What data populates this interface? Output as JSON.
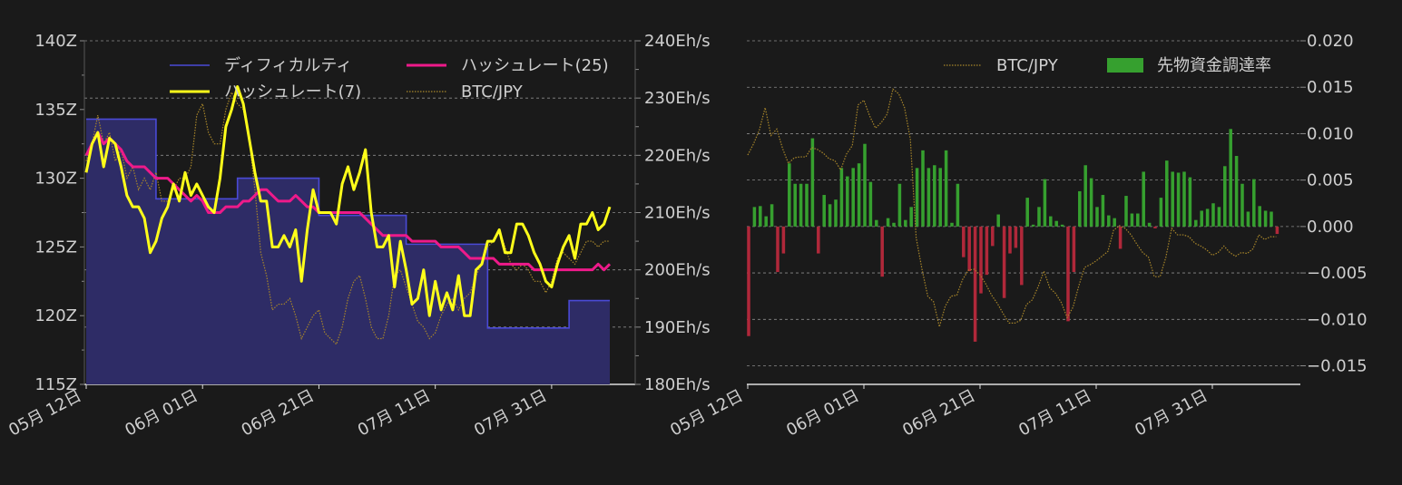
{
  "colors": {
    "background": "#1a1a1a",
    "grid": "#8a8a8a",
    "axis_text": "#cfcfcf",
    "difficulty_fill": "#2e2c66",
    "difficulty_line": "#4a4ad6",
    "hashrate7": "#ffff1a",
    "hashrate25": "#ee1a8a",
    "btc_jpy": "#a8862a",
    "funding_pos": "#36a02f",
    "funding_neg": "#b0283a"
  },
  "chart_data": [
    {
      "type": "line",
      "title": "",
      "x_labels": [
        "05月 12日",
        "06月 01日",
        "06月 21日",
        "07月 11日",
        "07月 31日"
      ],
      "x_label_days": [
        0,
        20,
        40,
        60,
        80
      ],
      "x_range": [
        0,
        90
      ],
      "left_axis": {
        "label": "",
        "ylim": [
          115,
          140
        ],
        "ticks": [
          "115Z",
          "120Z",
          "125Z",
          "130Z",
          "135Z",
          "140Z"
        ],
        "tick_values": [
          115,
          120,
          125,
          130,
          135,
          140
        ]
      },
      "right_axis": {
        "label": "",
        "ylim": [
          180,
          240
        ],
        "ticks": [
          "180Eh/s",
          "190Eh/s",
          "200Eh/s",
          "210Eh/s",
          "220Eh/s",
          "230Eh/s",
          "240Eh/s"
        ],
        "tick_values": [
          180,
          190,
          200,
          210,
          220,
          230,
          240
        ]
      },
      "grid": true,
      "legend": [
        "ディフィカルティ",
        "ハッシュレート(25)",
        "ハッシュレート(7)",
        "BTC/JPY"
      ],
      "legend_position": "top",
      "series": [
        {
          "name": "ディフィカルティ",
          "axis": "left",
          "kind": "step-area",
          "x": [
            0,
            12,
            12,
            26,
            26,
            40,
            40,
            55,
            55,
            69,
            69,
            83,
            83,
            90
          ],
          "values": [
            134.3,
            134.3,
            128.5,
            128.5,
            130.0,
            130.0,
            127.3,
            127.3,
            125.2,
            125.2,
            119.1,
            119.1,
            121.1,
            121.1
          ]
        },
        {
          "name": "ハッシュレート(7)",
          "axis": "right",
          "x": [
            0,
            1,
            2,
            3,
            4,
            5,
            6,
            7,
            8,
            9,
            10,
            11,
            12,
            13,
            14,
            15,
            16,
            17,
            18,
            19,
            20,
            21,
            22,
            23,
            24,
            25,
            26,
            27,
            28,
            29,
            30,
            31,
            32,
            33,
            34,
            35,
            36,
            37,
            38,
            39,
            40,
            41,
            42,
            43,
            44,
            45,
            46,
            47,
            48,
            49,
            50,
            51,
            52,
            53,
            54,
            55,
            56,
            57,
            58,
            59,
            60,
            61,
            62,
            63,
            64,
            65,
            66,
            67,
            68,
            69,
            70,
            71,
            72,
            73,
            74,
            75,
            76,
            77,
            78,
            79,
            80,
            81,
            82,
            83,
            84,
            85,
            86,
            87,
            88,
            89,
            90
          ],
          "values": [
            217,
            222,
            224,
            218,
            223,
            222,
            218,
            213,
            211,
            211,
            209,
            203,
            205,
            209,
            211,
            215,
            212,
            217,
            213,
            215,
            213,
            211,
            210,
            216,
            225,
            228,
            232,
            229,
            223,
            217,
            212,
            212,
            204,
            204,
            206,
            204,
            207,
            198,
            207,
            214,
            210,
            210,
            210,
            208,
            215,
            218,
            214,
            217,
            221,
            210,
            204,
            204,
            206,
            197,
            205,
            200,
            194,
            195,
            200,
            192,
            198,
            193,
            196,
            193,
            199,
            192,
            192,
            200,
            201,
            205,
            205,
            207,
            203,
            203,
            208,
            208,
            206,
            203,
            201,
            198,
            197,
            201,
            204,
            206,
            202,
            208,
            208,
            210,
            207,
            208,
            211
          ]
        },
        {
          "name": "ハッシュレート(25)",
          "axis": "right",
          "x": [
            0,
            1,
            2,
            3,
            4,
            5,
            6,
            7,
            8,
            9,
            10,
            11,
            12,
            13,
            14,
            15,
            16,
            17,
            18,
            19,
            20,
            21,
            22,
            23,
            24,
            25,
            26,
            27,
            28,
            29,
            30,
            31,
            32,
            33,
            34,
            35,
            36,
            37,
            38,
            39,
            40,
            41,
            42,
            43,
            44,
            45,
            46,
            47,
            48,
            49,
            50,
            51,
            52,
            53,
            54,
            55,
            56,
            57,
            58,
            59,
            60,
            61,
            62,
            63,
            64,
            65,
            66,
            67,
            68,
            69,
            70,
            71,
            72,
            73,
            74,
            75,
            76,
            77,
            78,
            79,
            80,
            81,
            82,
            83,
            84,
            85,
            86,
            87,
            88,
            89,
            90
          ],
          "values": [
            220,
            222,
            224,
            222,
            223,
            222,
            221,
            219,
            218,
            218,
            218,
            217,
            216,
            216,
            216,
            215,
            214,
            213,
            212,
            213,
            212,
            210,
            210,
            210,
            211,
            211,
            211,
            212,
            212,
            213,
            214,
            214,
            213,
            212,
            212,
            212,
            213,
            212,
            211,
            211,
            210,
            210,
            210,
            210,
            210,
            210,
            210,
            210,
            209,
            208,
            207,
            206,
            206,
            206,
            206,
            206,
            205,
            205,
            205,
            205,
            205,
            204,
            204,
            204,
            204,
            203,
            202,
            202,
            202,
            202,
            202,
            201,
            201,
            201,
            201,
            201,
            201,
            200,
            200,
            200,
            200,
            200,
            200,
            200,
            200,
            200,
            200,
            200,
            201,
            200,
            201
          ]
        },
        {
          "name": "BTC/JPY",
          "axis": "right",
          "kind": "dotted",
          "x": [
            0,
            1,
            2,
            3,
            4,
            5,
            6,
            7,
            8,
            9,
            10,
            11,
            12,
            13,
            14,
            15,
            16,
            17,
            18,
            19,
            20,
            21,
            22,
            23,
            24,
            25,
            26,
            27,
            28,
            29,
            30,
            31,
            32,
            33,
            34,
            35,
            36,
            37,
            38,
            39,
            40,
            41,
            42,
            43,
            44,
            45,
            46,
            47,
            48,
            49,
            50,
            51,
            52,
            53,
            54,
            55,
            56,
            57,
            58,
            59,
            60,
            61,
            62,
            63,
            64,
            65,
            66,
            67,
            68,
            69,
            70,
            71,
            72,
            73,
            74,
            75,
            76,
            77,
            78,
            79,
            80,
            81,
            82,
            83,
            84,
            85,
            86,
            87,
            88,
            89,
            90
          ],
          "values": [
            219,
            222,
            227,
            222,
            224,
            219,
            221,
            216,
            218,
            214,
            216,
            214,
            217,
            212,
            212,
            214,
            216,
            216,
            218,
            227,
            229,
            224,
            222,
            222,
            228,
            231,
            229,
            228,
            223,
            214,
            203,
            199,
            193,
            194,
            194,
            195,
            192,
            188,
            190,
            192,
            193,
            189,
            188,
            187,
            190,
            195,
            198,
            199,
            195,
            190,
            188,
            188,
            192,
            199,
            200,
            197,
            194,
            191,
            190,
            188,
            189,
            192,
            194,
            195,
            193,
            195,
            196,
            199,
            201,
            204,
            205,
            207,
            204,
            201,
            200,
            201,
            200,
            198,
            198,
            196,
            198,
            202,
            203,
            202,
            201,
            203,
            205,
            205,
            204,
            205,
            205
          ]
        }
      ]
    },
    {
      "type": "bar",
      "title": "",
      "x_labels": [
        "05月 12日",
        "06月 01日",
        "06月 21日",
        "07月 11日",
        "07月 31日"
      ],
      "x_label_days": [
        0,
        20,
        40,
        60,
        80
      ],
      "x_range": [
        0,
        95
      ],
      "right_axis": {
        "label": "",
        "ylim": [
          -0.017,
          0.02
        ],
        "ticks": [
          "−0.015",
          "−0.010",
          "−0.005",
          "0.000",
          "0.005",
          "0.010",
          "0.015",
          "0.020"
        ],
        "tick_values": [
          -0.015,
          -0.01,
          -0.005,
          0,
          0.005,
          0.01,
          0.015,
          0.02
        ]
      },
      "grid": true,
      "legend": [
        "BTC/JPY",
        "先物資金調達率"
      ],
      "legend_position": "top-right",
      "series": [
        {
          "name": "先物資金調達率",
          "kind": "bars",
          "x": [
            0,
            1,
            2,
            3,
            4,
            5,
            6,
            7,
            8,
            9,
            10,
            11,
            12,
            13,
            14,
            15,
            16,
            17,
            18,
            19,
            20,
            21,
            22,
            23,
            24,
            25,
            26,
            27,
            28,
            29,
            30,
            31,
            32,
            33,
            34,
            35,
            36,
            37,
            38,
            39,
            40,
            41,
            42,
            43,
            44,
            45,
            46,
            47,
            48,
            49,
            50,
            51,
            52,
            53,
            54,
            55,
            56,
            57,
            58,
            59,
            60,
            61,
            62,
            63,
            64,
            65,
            66,
            67,
            68,
            69,
            70,
            71,
            72,
            73,
            74,
            75,
            76,
            77,
            78,
            79,
            80,
            81,
            82,
            83,
            84,
            85,
            86,
            87,
            88,
            89,
            90,
            91
          ],
          "values": [
            -0.0118,
            0.0021,
            0.0022,
            0.0011,
            0.0024,
            -0.0049,
            -0.0029,
            0.0068,
            0.0046,
            0.0046,
            0.0046,
            0.0095,
            -0.0029,
            0.0034,
            0.0024,
            0.0029,
            0.0063,
            0.0054,
            0.0063,
            0.0068,
            0.0089,
            0.0048,
            0.0007,
            -0.0054,
            0.0009,
            0.0004,
            0.0046,
            0.0007,
            0.0021,
            0.0063,
            0.0082,
            0.0063,
            0.0066,
            0.0063,
            0.0082,
            0.0004,
            0.0046,
            -0.0033,
            -0.0048,
            -0.0124,
            -0.0072,
            -0.0052,
            -0.0021,
            0.0013,
            -0.0077,
            -0.0029,
            -0.0023,
            -0.0063,
            0.0031,
            0.0002,
            0.0021,
            0.0051,
            0.0011,
            0.0006,
            0.0002,
            -0.0102,
            -0.0049,
            0.0038,
            0.0066,
            0.0052,
            0.0021,
            0.0034,
            0.0012,
            0.0009,
            -0.0024,
            0.0033,
            0.0014,
            0.0014,
            0.0059,
            0.0004,
            -0.0002,
            0.0031,
            0.0071,
            0.0059,
            0.0058,
            0.0059,
            0.0053,
            0.0007,
            0.0017,
            0.0019,
            0.0025,
            0.0021,
            0.0065,
            0.0105,
            0.0076,
            0.0046,
            0.0016,
            0.0051,
            0.0022,
            0.0017,
            0.0016,
            -0.0008
          ]
        },
        {
          "name": "BTC/JPY",
          "kind": "dotted",
          "x": [
            0,
            1,
            2,
            3,
            4,
            5,
            6,
            7,
            8,
            9,
            10,
            11,
            12,
            13,
            14,
            15,
            16,
            17,
            18,
            19,
            20,
            21,
            22,
            23,
            24,
            25,
            26,
            27,
            28,
            29,
            30,
            31,
            32,
            33,
            34,
            35,
            36,
            37,
            38,
            39,
            40,
            41,
            42,
            43,
            44,
            45,
            46,
            47,
            48,
            49,
            50,
            51,
            52,
            53,
            54,
            55,
            56,
            57,
            58,
            59,
            60,
            61,
            62,
            63,
            64,
            65,
            66,
            67,
            68,
            69,
            70,
            71,
            72,
            73,
            74,
            75,
            76,
            77,
            78,
            79,
            80,
            81,
            82,
            83,
            84,
            85,
            86,
            87,
            88,
            89,
            90,
            91
          ],
          "values": [
            0.0077,
            0.0089,
            0.0104,
            0.0128,
            0.0098,
            0.0105,
            0.0084,
            0.0068,
            0.0074,
            0.0075,
            0.0075,
            0.0085,
            0.0083,
            0.0079,
            0.0073,
            0.0071,
            0.0061,
            0.0078,
            0.0087,
            0.0131,
            0.0136,
            0.0119,
            0.0106,
            0.0112,
            0.0121,
            0.0148,
            0.0143,
            0.0128,
            0.0094,
            -0.0012,
            -0.0046,
            -0.0075,
            -0.0081,
            -0.0108,
            -0.0086,
            -0.0075,
            -0.0074,
            -0.0057,
            -0.0047,
            -0.0046,
            -0.0052,
            -0.0062,
            -0.0074,
            -0.0083,
            -0.0094,
            -0.0104,
            -0.0104,
            -0.0101,
            -0.0084,
            -0.0079,
            -0.0065,
            -0.0048,
            -0.0066,
            -0.0072,
            -0.0082,
            -0.0098,
            -0.0087,
            -0.0064,
            -0.0044,
            -0.0041,
            -0.0037,
            -0.0032,
            -0.0027,
            -0.0004,
            0.0001,
            -0.0002,
            -0.0009,
            -0.0019,
            -0.0028,
            -0.0033,
            -0.0054,
            -0.0054,
            -0.0033,
            -0.0002,
            -0.0009,
            -0.0009,
            -0.0011,
            -0.0018,
            -0.0021,
            -0.0025,
            -0.0031,
            -0.0028,
            -0.0021,
            -0.0028,
            -0.0032,
            -0.0028,
            -0.0029,
            -0.0024,
            -0.0009,
            -0.0014,
            -0.0011,
            -0.0011
          ]
        }
      ]
    }
  ]
}
